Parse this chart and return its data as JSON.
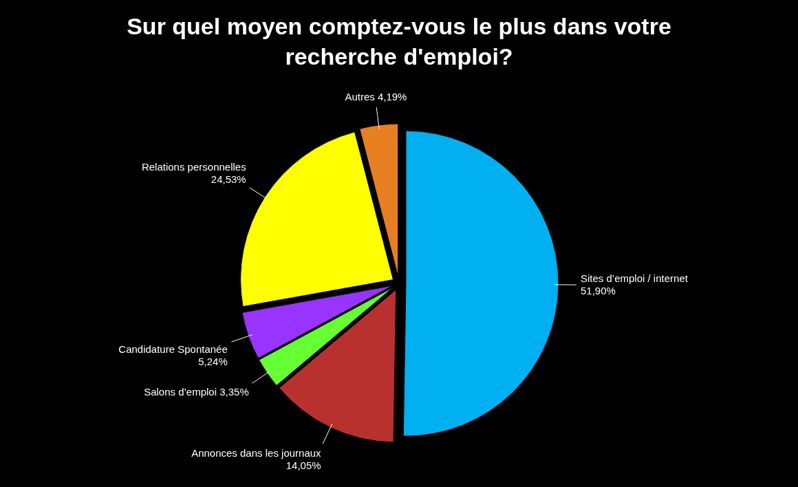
{
  "chart_data": {
    "type": "pie",
    "title": "Sur quel moyen comptez-vous le plus dans votre recherche d'emploi?",
    "categories": [
      "Sites d’emploi / internet",
      "Annonces dans les journaux",
      "Salons d’emploi",
      "Candidature Spontanée",
      "Relations personnelles",
      "Autres"
    ],
    "values": [
      51.9,
      14.05,
      3.35,
      5.24,
      24.53,
      4.19
    ],
    "colors": [
      "#00b0f0",
      "#b8312f",
      "#66ff33",
      "#9933ff",
      "#ffff00",
      "#e87e22"
    ],
    "value_labels": [
      "51,90%",
      "14,05%",
      "3,35%",
      "5,24%",
      "24,53%",
      "4,19%"
    ]
  }
}
